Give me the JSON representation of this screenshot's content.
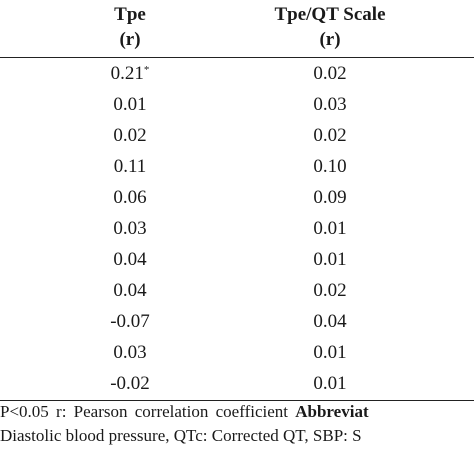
{
  "table": {
    "headers": {
      "col1_line1": "Tpe",
      "col1_line2": "(r)",
      "col2_line1": "Tpe/QT Scale",
      "col2_line2": "(r)"
    },
    "rows": [
      {
        "tpe": "0.21",
        "tpe_mark": "*",
        "scale": "0.02"
      },
      {
        "tpe": "0.01",
        "tpe_mark": "",
        "scale": "0.03"
      },
      {
        "tpe": "0.02",
        "tpe_mark": "",
        "scale": "0.02"
      },
      {
        "tpe": "0.11",
        "tpe_mark": "",
        "scale": "0.10"
      },
      {
        "tpe": "0.06",
        "tpe_mark": "",
        "scale": "0.09"
      },
      {
        "tpe": "0.03",
        "tpe_mark": "",
        "scale": "0.01"
      },
      {
        "tpe": "0.04",
        "tpe_mark": "",
        "scale": "0.01"
      },
      {
        "tpe": "0.04",
        "tpe_mark": "",
        "scale": "0.02"
      },
      {
        "tpe": "-0.07",
        "tpe_mark": "",
        "scale": "0.04"
      },
      {
        "tpe": "0.03",
        "tpe_mark": "",
        "scale": "0.01"
      },
      {
        "tpe": "-0.02",
        "tpe_mark": "",
        "scale": "0.01"
      }
    ]
  },
  "footnotes": {
    "line1_text": "P<0.05 r: Pearson correlation coefficient ",
    "line1_bold": "Abbreviat",
    "line2_text": " Diastolic blood pressure, QTc: Corrected QT, SBP: S"
  }
}
